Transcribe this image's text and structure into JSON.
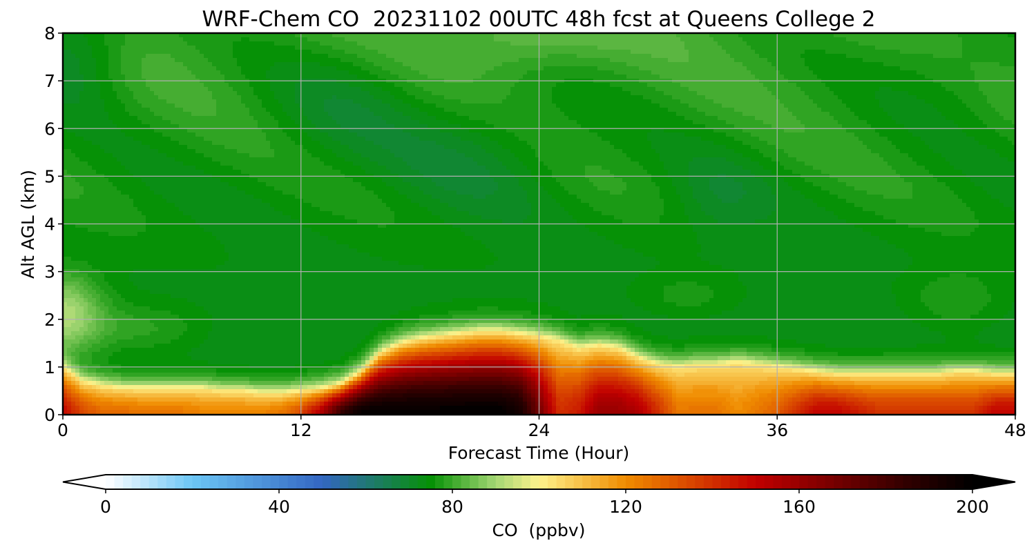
{
  "chart_data": {
    "type": "heatmap",
    "title": "WRF-Chem CO  20231102 00UTC 48h fcst at Queens College 2",
    "xlabel": "Forecast Time (Hour)",
    "ylabel": "Alt AGL (km)",
    "xlim": [
      0,
      48
    ],
    "ylim": [
      0,
      8
    ],
    "x_ticks": [
      0,
      12,
      24,
      36,
      48
    ],
    "y_ticks": [
      0,
      1,
      2,
      3,
      4,
      5,
      6,
      7,
      8
    ],
    "grid": true,
    "colorbar": {
      "label": "CO  (ppbv)",
      "range": [
        0,
        200
      ],
      "ticks": [
        0,
        40,
        80,
        120,
        160,
        200
      ],
      "extend": "both",
      "levels": 100,
      "colormap": [
        {
          "v": 0,
          "c": "#ffffff"
        },
        {
          "v": 20,
          "c": "#6cc6f5"
        },
        {
          "v": 50,
          "c": "#3366c2"
        },
        {
          "v": 75,
          "c": "#069106"
        },
        {
          "v": 90,
          "c": "#a5d774"
        },
        {
          "v": 100,
          "c": "#fef38c"
        },
        {
          "v": 120,
          "c": "#f08c00"
        },
        {
          "v": 150,
          "c": "#c10000"
        },
        {
          "v": 185,
          "c": "#300000"
        },
        {
          "v": 200,
          "c": "#000000"
        }
      ]
    },
    "field": {
      "x_hours": [
        0,
        1,
        2,
        3,
        4,
        5,
        6,
        7,
        8,
        9,
        10,
        11,
        12,
        13,
        14,
        15,
        16,
        17,
        18,
        19,
        20,
        21,
        22,
        23,
        24,
        25,
        26,
        27,
        28,
        29,
        30,
        31,
        32,
        33,
        34,
        35,
        36,
        37,
        38,
        39,
        40,
        41,
        42,
        43,
        44,
        45,
        46,
        47,
        48
      ],
      "boundary_layer_top_km": [
        1.0,
        0.7,
        0.6,
        0.55,
        0.55,
        0.55,
        0.55,
        0.55,
        0.5,
        0.5,
        0.45,
        0.45,
        0.5,
        0.55,
        0.65,
        0.9,
        1.3,
        1.5,
        1.6,
        1.65,
        1.7,
        1.75,
        1.75,
        1.7,
        1.65,
        1.55,
        1.4,
        1.45,
        1.4,
        1.2,
        1.05,
        1.0,
        1.05,
        1.05,
        1.1,
        1.05,
        1.0,
        0.95,
        0.9,
        0.85,
        0.85,
        0.85,
        0.85,
        0.85,
        0.85,
        0.9,
        0.9,
        0.85,
        0.85
      ],
      "surface_co_ppbv": [
        150,
        135,
        128,
        128,
        125,
        125,
        125,
        122,
        122,
        122,
        122,
        125,
        135,
        155,
        185,
        200,
        200,
        200,
        200,
        200,
        200,
        200,
        200,
        195,
        170,
        140,
        145,
        160,
        160,
        155,
        140,
        125,
        125,
        125,
        120,
        125,
        130,
        140,
        150,
        150,
        145,
        140,
        140,
        140,
        140,
        140,
        140,
        150,
        150
      ],
      "upper_note": "Free troposphere ~66-80 ppbv (green to teal), lowest ~55-62 ppbv near top-left and mid-levels"
    }
  }
}
